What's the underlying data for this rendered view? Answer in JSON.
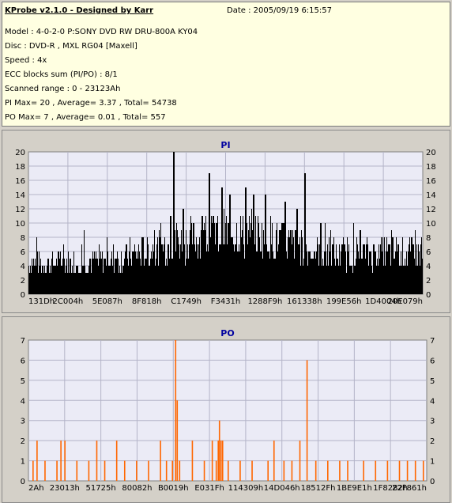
{
  "header": {
    "app_title": "KProbe v2.1.0 - Designed by Karr",
    "date": "Date : 2005/09/19 6:15:57",
    "lines": [
      "Model : 4-0-2-0 P:SONY    DVD RW DRU-800A  KY04",
      "Disc : DVD-R  , MXL RG04 [Maxell]",
      "Speed : 4x",
      "ECC blocks sum (PI/PO) : 8/1",
      "Scanned range : 0 - 23123Ah",
      "PI Max= 20 , Average= 3.37 , Total= 54738",
      "PO Max= 7 , Average= 0.01 , Total= 557"
    ]
  },
  "colors": {
    "pi_bar": "#000000",
    "po_bar": "#ff6600",
    "plot_bg": "#ebebf6",
    "grid": "#b4b4c8",
    "title": "#0000a0"
  },
  "chart_data": [
    {
      "type": "bar",
      "title": "PI",
      "ylim": [
        0,
        20
      ],
      "yticks": [
        0,
        2,
        4,
        6,
        8,
        10,
        12,
        14,
        16,
        18,
        20
      ],
      "xlabels": [
        "131Dh",
        "2C004h",
        "5E087h",
        "8F818h",
        "C1749h",
        "F3431h",
        "1288F9h",
        "161338h",
        "199E56h",
        "1D4004h",
        "20E079h"
      ],
      "x_range_hex": [
        "0h",
        "23123Ah"
      ],
      "baseline": [
        [
          0,
          4.6
        ],
        [
          0.1,
          4.8
        ],
        [
          0.2,
          5.2
        ],
        [
          0.25,
          5.8
        ],
        [
          0.32,
          6.8
        ],
        [
          0.4,
          8.2
        ],
        [
          0.45,
          8.8
        ],
        [
          0.5,
          9.4
        ],
        [
          0.58,
          9.0
        ],
        [
          0.65,
          8.0
        ],
        [
          0.72,
          6.6
        ],
        [
          0.8,
          6.0
        ],
        [
          0.9,
          6.3
        ],
        [
          1.0,
          6.0
        ]
      ],
      "peaks": [
        [
          0.02,
          8
        ],
        [
          0.14,
          8.5
        ],
        [
          0.36,
          11
        ],
        [
          0.368,
          20
        ],
        [
          0.375,
          10
        ],
        [
          0.392,
          12
        ],
        [
          0.44,
          11
        ],
        [
          0.458,
          17
        ],
        [
          0.49,
          15
        ],
        [
          0.51,
          14
        ],
        [
          0.55,
          15
        ],
        [
          0.57,
          14
        ],
        [
          0.6,
          14
        ],
        [
          0.65,
          13
        ],
        [
          0.68,
          12
        ],
        [
          0.7,
          17
        ],
        [
          0.74,
          10
        ],
        [
          0.84,
          9
        ],
        [
          0.92,
          9
        ],
        [
          0.98,
          9
        ]
      ]
    },
    {
      "type": "bar",
      "title": "PO",
      "ylim": [
        0,
        7
      ],
      "yticks": [
        0,
        1,
        2,
        3,
        4,
        5,
        6,
        7
      ],
      "xlabels": [
        "2Ah",
        "23013h",
        "51725h",
        "80082h",
        "B0019h",
        "E031Fh",
        "114309h",
        "14D046h",
        "18512Fh",
        "1BE9E1h",
        "1F8282h",
        "22F861h"
      ],
      "x_range_hex": [
        "0h",
        "23123Ah"
      ],
      "spikes": [
        [
          0.01,
          1
        ],
        [
          0.02,
          2
        ],
        [
          0.04,
          1
        ],
        [
          0.07,
          1
        ],
        [
          0.08,
          2
        ],
        [
          0.09,
          2
        ],
        [
          0.12,
          1
        ],
        [
          0.15,
          1
        ],
        [
          0.17,
          2
        ],
        [
          0.19,
          1
        ],
        [
          0.22,
          2
        ],
        [
          0.24,
          1
        ],
        [
          0.27,
          1
        ],
        [
          0.3,
          1
        ],
        [
          0.33,
          2
        ],
        [
          0.345,
          1
        ],
        [
          0.36,
          1
        ],
        [
          0.368,
          7
        ],
        [
          0.372,
          4
        ],
        [
          0.378,
          1
        ],
        [
          0.41,
          2
        ],
        [
          0.44,
          1
        ],
        [
          0.46,
          2
        ],
        [
          0.47,
          1
        ],
        [
          0.475,
          2
        ],
        [
          0.478,
          3
        ],
        [
          0.482,
          2
        ],
        [
          0.486,
          2
        ],
        [
          0.5,
          1
        ],
        [
          0.53,
          1
        ],
        [
          0.56,
          1
        ],
        [
          0.6,
          1
        ],
        [
          0.615,
          2
        ],
        [
          0.64,
          1
        ],
        [
          0.66,
          1
        ],
        [
          0.68,
          2
        ],
        [
          0.698,
          6
        ],
        [
          0.72,
          1
        ],
        [
          0.75,
          1
        ],
        [
          0.78,
          1
        ],
        [
          0.8,
          1
        ],
        [
          0.84,
          1
        ],
        [
          0.87,
          1
        ],
        [
          0.9,
          1
        ],
        [
          0.93,
          1
        ],
        [
          0.95,
          1
        ],
        [
          0.97,
          1
        ],
        [
          0.99,
          1
        ]
      ]
    }
  ]
}
